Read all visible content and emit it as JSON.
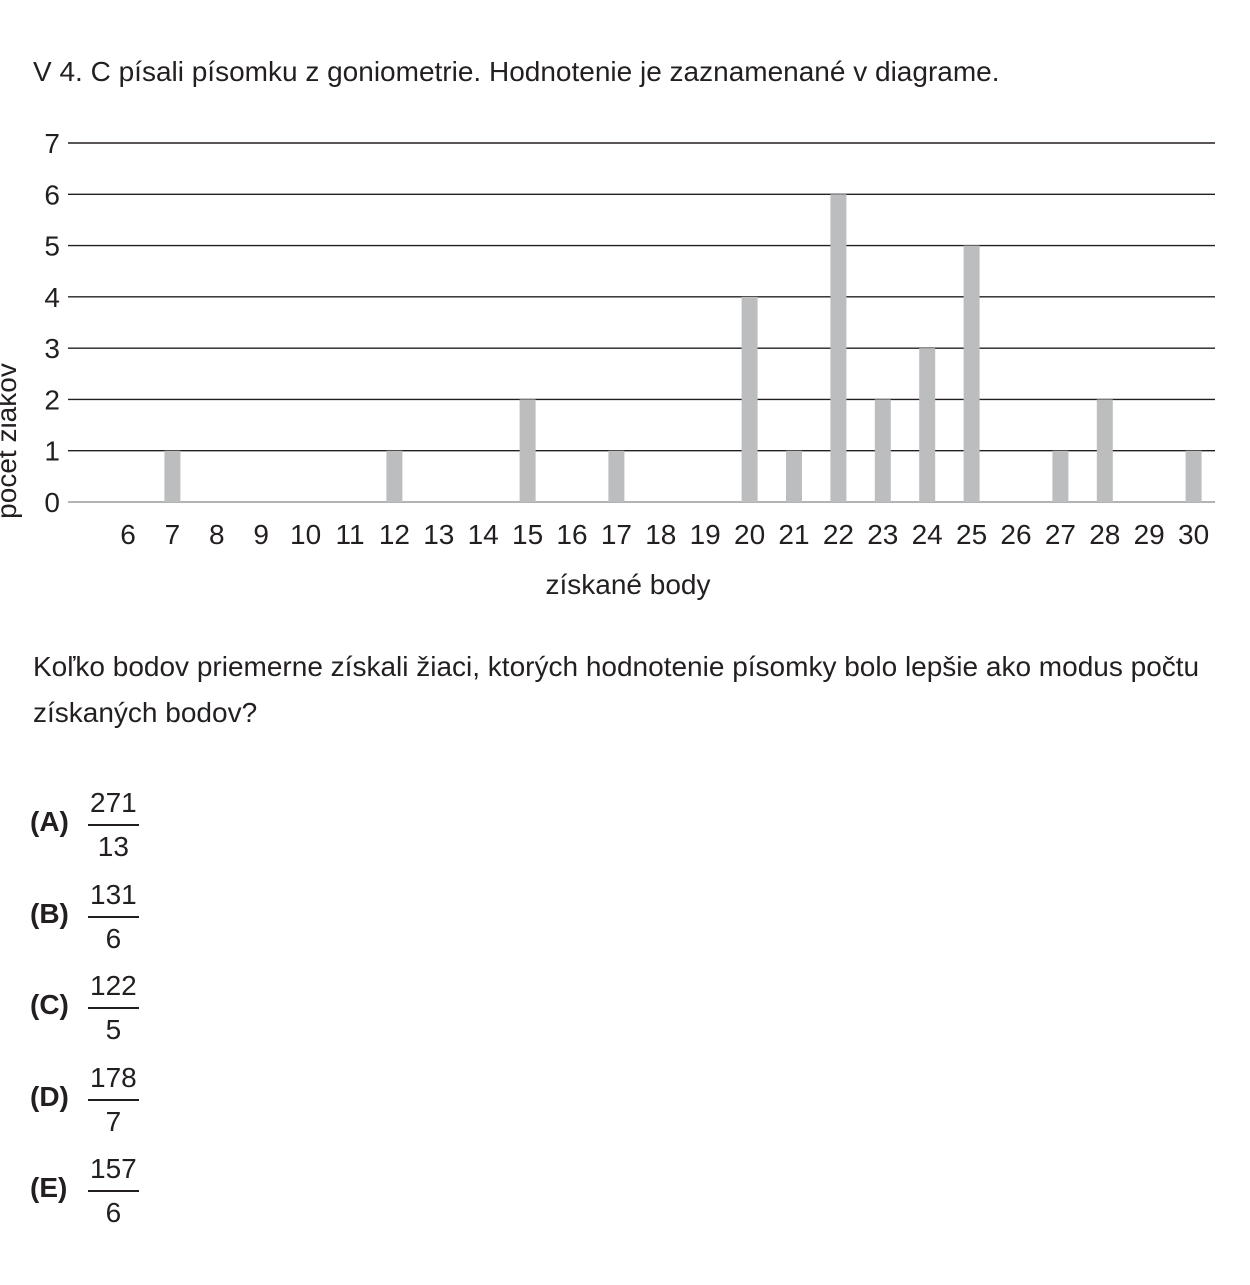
{
  "intro": "V 4. C písali písomku z goniometrie. Hodnotenie je zaznamenané v diagrame.",
  "chart_data": {
    "type": "bar",
    "title": "",
    "xlabel": "získané body",
    "ylabel": "počet žiakov",
    "ylim": [
      0,
      7
    ],
    "yticks": [
      0,
      1,
      2,
      3,
      4,
      5,
      6,
      7
    ],
    "grid": true,
    "bar_color": "#bcbdbf",
    "categories": [
      "6",
      "7",
      "8",
      "9",
      "10",
      "11",
      "12",
      "13",
      "14",
      "15",
      "16",
      "17",
      "18",
      "19",
      "20",
      "21",
      "22",
      "23",
      "24",
      "25",
      "26",
      "27",
      "28",
      "29",
      "30"
    ],
    "values": [
      0,
      1,
      0,
      0,
      0,
      0,
      1,
      0,
      0,
      2,
      0,
      1,
      0,
      0,
      4,
      1,
      6,
      2,
      3,
      5,
      0,
      1,
      2,
      0,
      1
    ]
  },
  "question": "Koľko bodov priemerne získali žiaci, ktorých hodnotenie písomky bolo lepšie ako modus počtu získaných bodov?",
  "options": [
    {
      "label": "(A)",
      "numerator": "271",
      "denominator": "13"
    },
    {
      "label": "(B)",
      "numerator": "131",
      "denominator": "6"
    },
    {
      "label": "(C)",
      "numerator": "122",
      "denominator": "5"
    },
    {
      "label": "(D)",
      "numerator": "178",
      "denominator": "7"
    },
    {
      "label": "(E)",
      "numerator": "157",
      "denominator": "6"
    }
  ]
}
